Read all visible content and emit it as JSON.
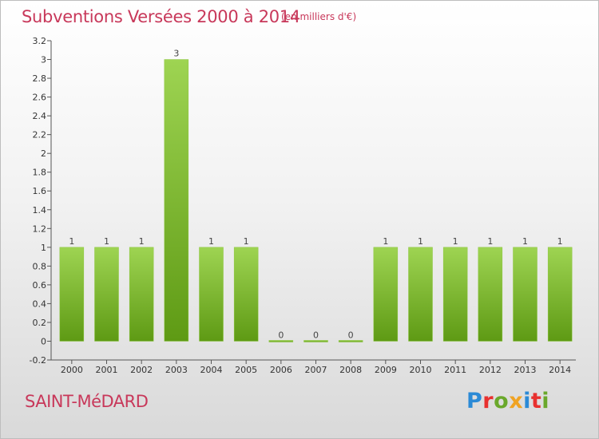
{
  "header": {
    "title": "Subventions Versées 2000 à 2014",
    "subtitle": "(en milliers d'€)"
  },
  "footer": {
    "commune": "SAINT-MéDARD",
    "logo_text": "Proxiti",
    "logo_colors": [
      "#2b8ad6",
      "#e8312f",
      "#6aa82b",
      "#f0a323",
      "#2b8ad6",
      "#e8312f",
      "#6aa82b"
    ]
  },
  "colors": {
    "bar_light": "#9ed452",
    "bar_dark": "#5e9a14",
    "title": "#c8385a"
  },
  "chart_data": {
    "type": "bar",
    "categories": [
      "2000",
      "2001",
      "2002",
      "2003",
      "2004",
      "2005",
      "2006",
      "2007",
      "2008",
      "2009",
      "2010",
      "2011",
      "2012",
      "2013",
      "2014"
    ],
    "values": [
      1,
      1,
      1,
      3,
      1,
      1,
      0,
      0,
      0,
      1,
      1,
      1,
      1,
      1,
      1
    ],
    "data_labels": [
      "1",
      "1",
      "1",
      "3",
      "1",
      "1",
      "0",
      "0",
      "0",
      "1",
      "1",
      "1",
      "1",
      "1",
      "1"
    ],
    "title": "Subventions Versées 2000 à 2014",
    "subtitle": "(en milliers d'€)",
    "xlabel": "",
    "ylabel": "",
    "ylim": [
      -0.2,
      3.2
    ],
    "yticks": [
      -0.2,
      0,
      0.2,
      0.4,
      0.6,
      0.8,
      1,
      1.2,
      1.4,
      1.6,
      1.8,
      2,
      2.2,
      2.4,
      2.6,
      2.8,
      3,
      3.2
    ],
    "ytick_labels": [
      "-0.2",
      "0",
      "0.2",
      "0.4",
      "0.6",
      "0.8",
      "1",
      "1.2",
      "1.4",
      "1.6",
      "1.8",
      "2",
      "2.2",
      "2.4",
      "2.6",
      "2.8",
      "3",
      "3.2"
    ],
    "grid": false,
    "legend": "none"
  }
}
